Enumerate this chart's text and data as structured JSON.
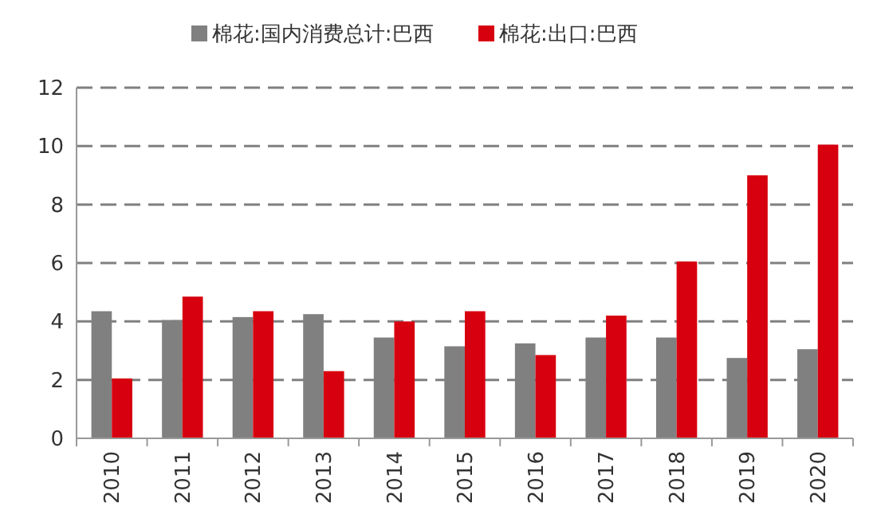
{
  "chart_data": {
    "type": "bar",
    "categories": [
      "2010",
      "2011",
      "2012",
      "2013",
      "2014",
      "2015",
      "2016",
      "2017",
      "2018",
      "2019",
      "2020"
    ],
    "series": [
      {
        "name": "棉花:国内消费总计:巴西",
        "color": "#808080",
        "values": [
          4.35,
          4.05,
          4.15,
          4.25,
          3.45,
          3.15,
          3.25,
          3.45,
          3.45,
          2.75,
          3.05
        ]
      },
      {
        "name": "棉花:出口:巴西",
        "color": "#d7000f",
        "values": [
          2.05,
          4.85,
          4.35,
          2.3,
          4.0,
          4.35,
          2.85,
          4.2,
          6.05,
          9.0,
          10.05
        ]
      }
    ],
    "ylim": [
      0,
      12
    ],
    "yticks": [
      0,
      2,
      4,
      6,
      8,
      10,
      12
    ],
    "grid": "y",
    "line_style": "dashed",
    "legend": "top"
  }
}
